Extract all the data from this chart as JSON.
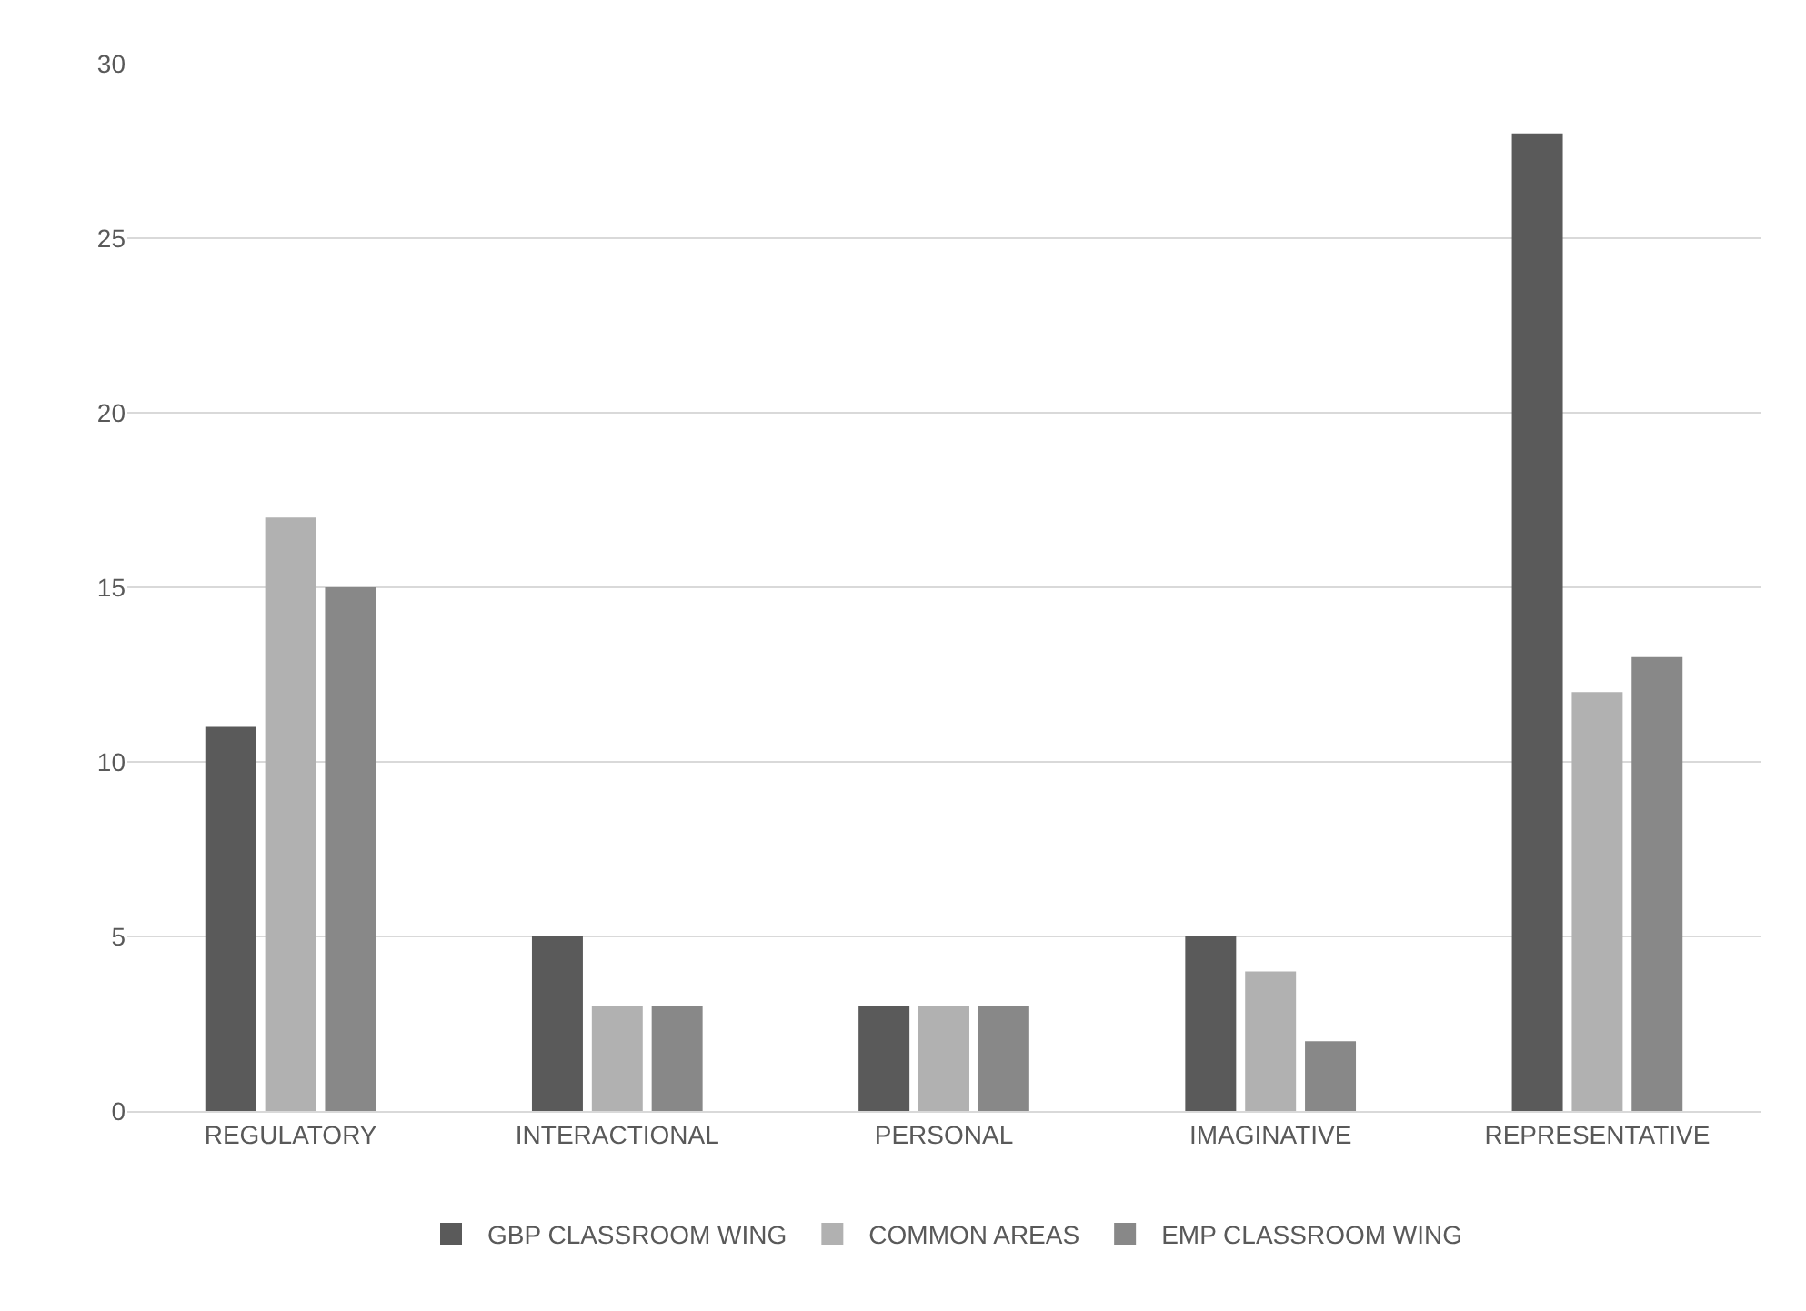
{
  "chart_data": {
    "type": "bar",
    "categories": [
      "REGULATORY",
      "INTERACTIONAL",
      "PERSONAL",
      "IMAGINATIVE",
      "REPRESENTATIVE"
    ],
    "series": [
      {
        "name": "GBP CLASSROOM WING",
        "color": "#5a5a5a",
        "values": [
          11,
          5,
          3,
          5,
          28
        ]
      },
      {
        "name": "COMMON AREAS",
        "color": "#b1b1b1",
        "values": [
          17,
          3,
          3,
          4,
          12
        ]
      },
      {
        "name": "EMP CLASSROOM WING",
        "color": "#888888",
        "values": [
          15,
          3,
          3,
          2,
          13
        ]
      }
    ],
    "ylim": [
      0,
      30
    ],
    "yticks": [
      0,
      5,
      10,
      15,
      20,
      25,
      30
    ],
    "grid": "y",
    "legend": "bottom"
  }
}
